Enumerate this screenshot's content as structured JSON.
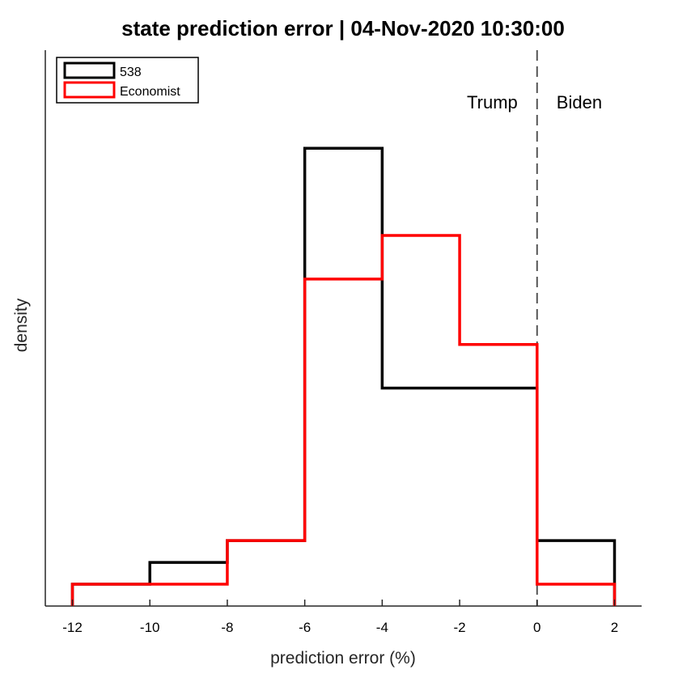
{
  "chart_data": {
    "type": "histogram",
    "title": "state prediction error | 04-Nov-2020 10:30:00",
    "xlabel": "prediction error (%)",
    "ylabel": "density",
    "xlim": [
      -12.7,
      2.7
    ],
    "ylim": [
      0,
      0.255
    ],
    "x_ticks": [
      -12,
      -10,
      -8,
      -6,
      -4,
      -2,
      0,
      2
    ],
    "x_tick_labels": [
      "-12",
      "-10",
      "-8",
      "-6",
      "-4",
      "-2",
      "0",
      "2"
    ],
    "y_ticks_shown": false,
    "bin_edges": [
      -12,
      -10,
      -8,
      -6,
      -4,
      -2,
      0,
      2
    ],
    "series": [
      {
        "name": "538",
        "color": "#000000",
        "values": [
          0.01,
          0.02,
          0.03,
          0.21,
          0.1,
          0.1,
          0.03
        ]
      },
      {
        "name": "Economist",
        "color": "#ff0000",
        "values": [
          0.01,
          0.01,
          0.03,
          0.15,
          0.17,
          0.12,
          0.01
        ]
      }
    ],
    "reference_line": {
      "x": 0,
      "style": "dashed",
      "color": "#555555"
    },
    "annotations": [
      {
        "text": "Trump",
        "side": "left-of-reference"
      },
      {
        "text": "Biden",
        "side": "right-of-reference"
      }
    ],
    "legend": {
      "placement": "top-left",
      "entries": [
        "538",
        "Economist"
      ]
    },
    "grid": false
  }
}
